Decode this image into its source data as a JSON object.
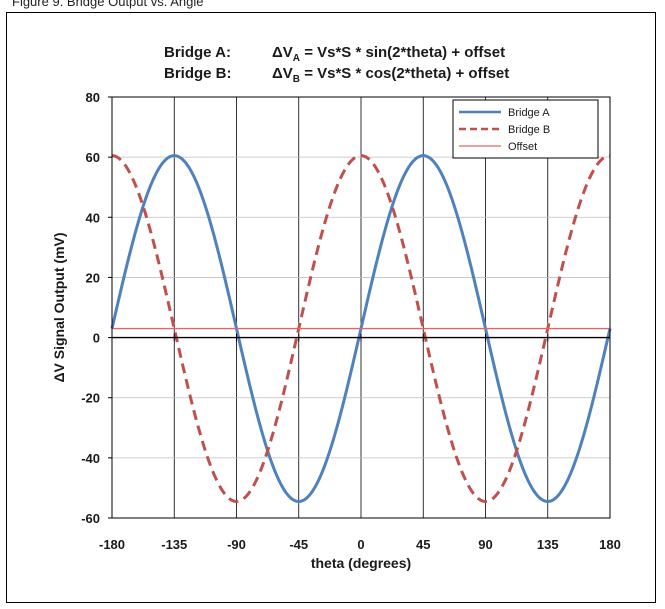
{
  "header_text": "Figure 9. Bridge Output vs. Angle",
  "chart_data": {
    "type": "line",
    "title_lines": [
      {
        "label": "Bridge A:",
        "formula_prefix": "ΔV",
        "subscript": "A",
        "formula_rest": " = Vs*S  * sin(2*theta)  + offset"
      },
      {
        "label": "Bridge B:",
        "formula_prefix": "ΔV",
        "subscript": "B",
        "formula_rest": " = Vs*S  * cos(2*theta)  + offset"
      }
    ],
    "xlabel": "theta (degrees)",
    "ylabel": "ΔV Signal Output (mV)",
    "xlim": [
      -180,
      180
    ],
    "ylim": [
      -60,
      80
    ],
    "xticks": [
      -180,
      -135,
      -90,
      -45,
      0,
      45,
      90,
      135,
      180
    ],
    "yticks": [
      -60,
      -40,
      -20,
      0,
      20,
      40,
      60,
      80
    ],
    "xtick_labels": [
      "-180",
      "-135",
      "-90",
      "-45",
      "0",
      "45",
      "90",
      "135",
      "180"
    ],
    "ytick_labels": [
      "-60",
      "-40",
      "-20",
      "0",
      "20",
      "40",
      "60",
      "80"
    ],
    "grid": true,
    "legend_position": "top-right",
    "series": [
      {
        "name": "Bridge A",
        "function": "sin",
        "amplitude": 57.5,
        "offset": 3,
        "color": "#4f81bd",
        "style": "solid"
      },
      {
        "name": "Bridge B",
        "function": "cos",
        "amplitude": 57.5,
        "offset": 3,
        "color": "#c0504d",
        "style": "dashed"
      },
      {
        "name": "Offset",
        "function": "const",
        "amplitude": 0,
        "offset": 3,
        "color": "#e06666",
        "style": "solid-thin"
      }
    ]
  }
}
